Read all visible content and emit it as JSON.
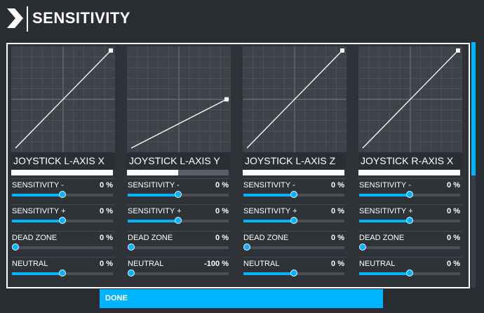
{
  "header": {
    "title": "SENSITIVITY"
  },
  "axes": [
    {
      "name": "JOYSTICK L-AXIS X",
      "curve_end": 1.0,
      "axis_position": 1.0,
      "params": [
        {
          "label": "SENSITIVITY -",
          "value": "0 %",
          "level": 0.5
        },
        {
          "label": "SENSITIVITY +",
          "value": "0 %",
          "level": 0.5
        },
        {
          "label": "DEAD ZONE",
          "value": "0 %",
          "level": 0.0
        },
        {
          "label": "NEUTRAL",
          "value": "0 %",
          "level": 0.5
        }
      ]
    },
    {
      "name": "JOYSTICK L-AXIS Y",
      "curve_end": 0.5,
      "axis_position": 0.5,
      "params": [
        {
          "label": "SENSITIVITY -",
          "value": "0 %",
          "level": 0.5
        },
        {
          "label": "SENSITIVITY +",
          "value": "0 %",
          "level": 0.5
        },
        {
          "label": "DEAD ZONE",
          "value": "0 %",
          "level": 0.0
        },
        {
          "label": "NEUTRAL",
          "value": "-100 %",
          "level": 0.0
        }
      ]
    },
    {
      "name": "JOYSTICK L-AXIS Z",
      "curve_end": 1.0,
      "axis_position": 1.0,
      "params": [
        {
          "label": "SENSITIVITY -",
          "value": "0 %",
          "level": 0.5
        },
        {
          "label": "SENSITIVITY +",
          "value": "0 %",
          "level": 0.5
        },
        {
          "label": "DEAD ZONE",
          "value": "0 %",
          "level": 0.0
        },
        {
          "label": "NEUTRAL",
          "value": "0 %",
          "level": 0.5
        }
      ]
    },
    {
      "name": "JOYSTICK R-AXIS X",
      "curve_end": 1.0,
      "axis_position": 1.0,
      "params": [
        {
          "label": "SENSITIVITY -",
          "value": "0 %",
          "level": 0.5
        },
        {
          "label": "SENSITIVITY +",
          "value": "0 %",
          "level": 0.5
        },
        {
          "label": "DEAD ZONE",
          "value": "0 %",
          "level": 0.0
        },
        {
          "label": "NEUTRAL",
          "value": "0 %",
          "level": 0.5
        }
      ]
    }
  ],
  "footer": {
    "done_label": "DONE"
  },
  "colors": {
    "accent": "#00b4ff",
    "background": "#2a2e33",
    "graph_bg": "#3e434a"
  }
}
